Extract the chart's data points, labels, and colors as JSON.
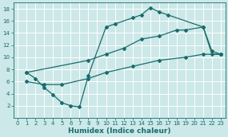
{
  "xlabel": "Humidex (Indice chaleur)",
  "bg_color": "#cce8e8",
  "line_color": "#1a6b6b",
  "grid_color": "#ffffff",
  "xlim": [
    -0.5,
    23.5
  ],
  "ylim": [
    0,
    19
  ],
  "xticks": [
    0,
    1,
    2,
    3,
    4,
    5,
    6,
    7,
    8,
    9,
    10,
    11,
    12,
    13,
    14,
    15,
    16,
    17,
    18,
    19,
    20,
    21,
    22,
    23
  ],
  "yticks": [
    2,
    4,
    6,
    8,
    10,
    12,
    14,
    16,
    18
  ],
  "line1_x": [
    1,
    2,
    3,
    4,
    5,
    6,
    7,
    8,
    10,
    11,
    13,
    14,
    15,
    16,
    17,
    21,
    22,
    23
  ],
  "line1_y": [
    7.5,
    6.5,
    5.0,
    3.8,
    2.5,
    2.0,
    1.8,
    7.0,
    15.0,
    15.5,
    16.5,
    17.0,
    18.2,
    17.5,
    17.0,
    15.0,
    11.0,
    10.5
  ],
  "line2_x": [
    1,
    8,
    10,
    12,
    14,
    16,
    18,
    19,
    21,
    22,
    23
  ],
  "line2_y": [
    7.5,
    9.5,
    10.5,
    11.5,
    13.0,
    13.5,
    14.5,
    14.5,
    15.0,
    10.5,
    10.5
  ],
  "line3_x": [
    1,
    3,
    5,
    8,
    10,
    13,
    16,
    19,
    21,
    23
  ],
  "line3_y": [
    6.0,
    5.5,
    5.5,
    6.5,
    7.5,
    8.5,
    9.5,
    10.0,
    10.5,
    10.5
  ]
}
